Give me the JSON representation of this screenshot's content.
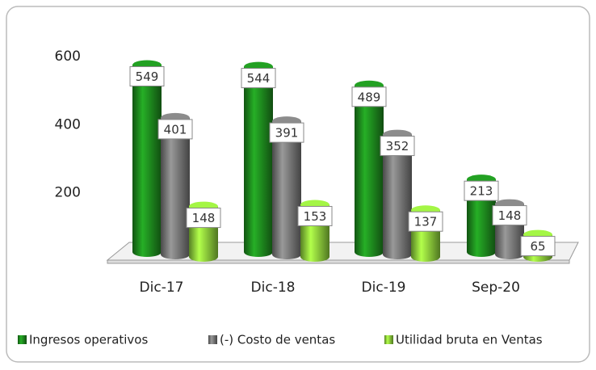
{
  "chart_data": {
    "type": "bar",
    "categories": [
      "Dic-17",
      "Dic-18",
      "Dic-19",
      "Sep-20"
    ],
    "series": [
      {
        "name": "Ingresos operativos",
        "color": "#1e8c1e",
        "values": [
          549,
          544,
          489,
          213
        ]
      },
      {
        "name": "(-) Costo de ventas",
        "color": "#7a7a7a",
        "values": [
          401,
          391,
          352,
          148
        ]
      },
      {
        "name": "Utilidad bruta en Ventas",
        "color": "#8fd63c",
        "values": [
          148,
          153,
          137,
          65
        ]
      }
    ],
    "ylim": [
      0,
      600
    ],
    "yticks": [
      200,
      400,
      600
    ],
    "grid": false
  }
}
